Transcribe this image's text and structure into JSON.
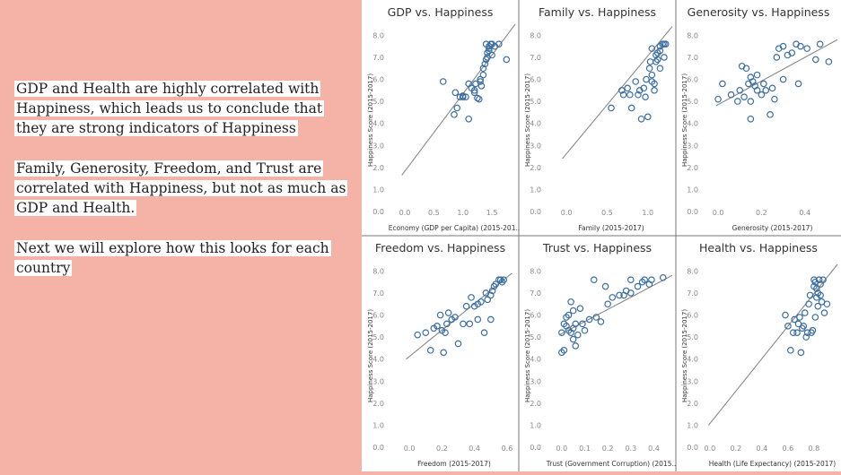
{
  "slide": {
    "paragraphs": [
      "GDP and Health are highly correlated with Happiness, which leads us to conclude that they are strong indicators of Happiness",
      "Family, Generosity, Freedom, and Trust are correlated with Happiness, but not as much as GDP and Health.",
      "Next we will explore how this looks for each country"
    ]
  },
  "chart_colors": {
    "point": "#3b6ea1",
    "trend": "#888888",
    "divider": "#777777"
  },
  "chart_data": [
    {
      "type": "scatter",
      "title": "GDP vs. Happiness",
      "xlabel": "Economy (GDP per Capita) (2015-201..",
      "ylabel": "Happiness Score (2015-2017)",
      "xlim": [
        -0.2,
        1.9
      ],
      "ylim": [
        0,
        8.3
      ],
      "xticks": [
        "0.0",
        "0.5",
        "1.0",
        "1.5"
      ],
      "xtick_values": [
        0,
        0.5,
        1.0,
        1.5
      ],
      "yticks": [
        "0.0",
        "1.0",
        "2.0",
        "3.0",
        "4.0",
        "5.0",
        "6.0",
        "7.0",
        "8.0"
      ],
      "ytick_values": [
        0,
        1,
        2,
        3,
        4,
        5,
        6,
        7,
        8
      ],
      "trend": [
        [
          -0.05,
          1.65
        ],
        [
          1.9,
          8.5
        ]
      ],
      "points": [
        [
          0.66,
          5.9
        ],
        [
          0.87,
          5.4
        ],
        [
          0.85,
          4.4
        ],
        [
          0.95,
          5.2
        ],
        [
          0.9,
          4.7
        ],
        [
          1.0,
          5.2
        ],
        [
          1.05,
          5.2
        ],
        [
          1.0,
          5.25
        ],
        [
          1.1,
          4.2
        ],
        [
          1.1,
          5.8
        ],
        [
          1.15,
          5.6
        ],
        [
          1.2,
          5.4
        ],
        [
          1.2,
          5.5
        ],
        [
          1.22,
          5.8
        ],
        [
          1.25,
          5.15
        ],
        [
          1.28,
          5.1
        ],
        [
          1.3,
          6.0
        ],
        [
          1.3,
          5.9
        ],
        [
          1.32,
          5.7
        ],
        [
          1.35,
          6.2
        ],
        [
          1.35,
          6.5
        ],
        [
          1.38,
          6.7
        ],
        [
          1.4,
          6.9
        ],
        [
          1.42,
          7.0
        ],
        [
          1.42,
          7.2
        ],
        [
          1.45,
          7.5
        ],
        [
          1.45,
          7.4
        ],
        [
          1.48,
          7.6
        ],
        [
          1.5,
          7.1
        ],
        [
          1.5,
          7.6
        ],
        [
          1.4,
          7.6
        ],
        [
          1.45,
          7.3
        ],
        [
          1.55,
          7.5
        ],
        [
          1.62,
          7.6
        ],
        [
          1.75,
          6.9
        ]
      ]
    },
    {
      "type": "scatter",
      "title": "Family vs. Happiness",
      "xlabel": "Family (2015-2017)",
      "ylabel": "Happiness Score (2015-2017)",
      "xlim": [
        -0.2,
        1.3
      ],
      "ylim": [
        0,
        8.3
      ],
      "xticks": [
        "0.0",
        "0.5",
        "1.0"
      ],
      "xtick_values": [
        0,
        0.5,
        1.0
      ],
      "yticks": [
        "0.0",
        "1.0",
        "2.0",
        "3.0",
        "4.0",
        "5.0",
        "6.0",
        "7.0",
        "8.0"
      ],
      "ytick_values": [
        0,
        1,
        2,
        3,
        4,
        5,
        6,
        7,
        8
      ],
      "trend": [
        [
          -0.05,
          2.4
        ],
        [
          1.3,
          8.4
        ]
      ],
      "points": [
        [
          0.55,
          4.7
        ],
        [
          0.68,
          5.5
        ],
        [
          0.7,
          5.3
        ],
        [
          0.75,
          5.6
        ],
        [
          0.78,
          5.3
        ],
        [
          0.8,
          4.7
        ],
        [
          0.85,
          5.9
        ],
        [
          0.88,
          5.3
        ],
        [
          0.9,
          5.5
        ],
        [
          0.92,
          4.2
        ],
        [
          0.95,
          5.6
        ],
        [
          0.97,
          5.2
        ],
        [
          0.98,
          6.0
        ],
        [
          1.0,
          4.3
        ],
        [
          1.02,
          6.5
        ],
        [
          1.03,
          6.8
        ],
        [
          1.05,
          7.4
        ],
        [
          1.05,
          5.9
        ],
        [
          1.08,
          5.5
        ],
        [
          1.1,
          7.1
        ],
        [
          1.1,
          6.8
        ],
        [
          1.12,
          6.9
        ],
        [
          1.12,
          7.2
        ],
        [
          1.15,
          7.5
        ],
        [
          1.15,
          7.3
        ],
        [
          1.15,
          6.5
        ],
        [
          1.18,
          7.6
        ],
        [
          1.2,
          7.6
        ],
        [
          1.2,
          7.0
        ],
        [
          1.22,
          7.6
        ],
        [
          1.05,
          6.2
        ],
        [
          1.08,
          5.8
        ]
      ]
    },
    {
      "type": "scatter",
      "title": "Generosity vs. Happiness",
      "xlabel": "Generosity (2015-2017)",
      "ylabel": "Happiness Score (2015-2017)",
      "xlim": [
        -0.05,
        0.55
      ],
      "ylim": [
        0,
        8.3
      ],
      "xticks": [
        "0.0",
        "0.2",
        "0.4"
      ],
      "xtick_values": [
        0,
        0.2,
        0.4
      ],
      "yticks": [
        "0.0",
        "1.0",
        "2.0",
        "3.0",
        "4.0",
        "5.0",
        "6.0",
        "7.0",
        "8.0"
      ],
      "ytick_values": [
        0,
        1,
        2,
        3,
        4,
        5,
        6,
        7,
        8
      ],
      "trend": [
        [
          -0.01,
          4.8
        ],
        [
          0.55,
          7.8
        ]
      ],
      "points": [
        [
          0.0,
          5.1
        ],
        [
          0.02,
          5.8
        ],
        [
          0.06,
          5.3
        ],
        [
          0.1,
          5.5
        ],
        [
          0.11,
          6.6
        ],
        [
          0.12,
          5.2
        ],
        [
          0.13,
          6.5
        ],
        [
          0.15,
          5.0
        ],
        [
          0.14,
          5.8
        ],
        [
          0.15,
          6.1
        ],
        [
          0.16,
          5.9
        ],
        [
          0.17,
          5.7
        ],
        [
          0.18,
          5.5
        ],
        [
          0.18,
          6.2
        ],
        [
          0.2,
          5.3
        ],
        [
          0.21,
          5.8
        ],
        [
          0.22,
          5.5
        ],
        [
          0.24,
          4.4
        ],
        [
          0.25,
          5.6
        ],
        [
          0.27,
          7.0
        ],
        [
          0.28,
          7.4
        ],
        [
          0.3,
          7.5
        ],
        [
          0.3,
          6.0
        ],
        [
          0.32,
          7.1
        ],
        [
          0.34,
          7.2
        ],
        [
          0.36,
          7.6
        ],
        [
          0.38,
          7.5
        ],
        [
          0.41,
          7.4
        ],
        [
          0.45,
          6.9
        ],
        [
          0.47,
          7.6
        ],
        [
          0.51,
          6.8
        ],
        [
          0.15,
          4.2
        ],
        [
          0.26,
          5.1
        ],
        [
          0.09,
          5.0
        ],
        [
          0.37,
          5.8
        ]
      ]
    },
    {
      "type": "scatter",
      "title": "Freedom vs. Happiness",
      "xlabel": "Freedom (2015-2017)",
      "ylabel": "Happiness Score (2015-2017)",
      "xlim": [
        -0.1,
        0.65
      ],
      "ylim": [
        0,
        8.3
      ],
      "xticks": [
        "0.0",
        "0.2",
        "0.4",
        "0.6"
      ],
      "xtick_values": [
        0,
        0.2,
        0.4,
        0.6
      ],
      "yticks": [
        "0.0",
        "1.0",
        "2.0",
        "3.0",
        "4.0",
        "5.0",
        "6.0",
        "7.0",
        "8.0"
      ],
      "ytick_values": [
        0,
        1,
        2,
        3,
        4,
        5,
        6,
        7,
        8
      ],
      "trend": [
        [
          -0.02,
          4.0
        ],
        [
          0.63,
          7.9
        ]
      ],
      "points": [
        [
          0.05,
          5.1
        ],
        [
          0.1,
          5.2
        ],
        [
          0.13,
          4.4
        ],
        [
          0.15,
          5.4
        ],
        [
          0.17,
          5.5
        ],
        [
          0.19,
          6.0
        ],
        [
          0.2,
          5.3
        ],
        [
          0.21,
          4.3
        ],
        [
          0.22,
          5.2
        ],
        [
          0.23,
          5.6
        ],
        [
          0.24,
          6.1
        ],
        [
          0.26,
          5.8
        ],
        [
          0.28,
          5.9
        ],
        [
          0.3,
          4.7
        ],
        [
          0.33,
          5.6
        ],
        [
          0.35,
          6.4
        ],
        [
          0.37,
          5.6
        ],
        [
          0.38,
          6.8
        ],
        [
          0.4,
          6.4
        ],
        [
          0.42,
          5.8
        ],
        [
          0.42,
          6.5
        ],
        [
          0.44,
          6.6
        ],
        [
          0.47,
          7.0
        ],
        [
          0.48,
          6.7
        ],
        [
          0.5,
          6.9
        ],
        [
          0.51,
          7.1
        ],
        [
          0.52,
          7.3
        ],
        [
          0.53,
          7.4
        ],
        [
          0.55,
          7.6
        ],
        [
          0.56,
          7.6
        ],
        [
          0.57,
          7.5
        ],
        [
          0.58,
          7.6
        ],
        [
          0.5,
          5.8
        ],
        [
          0.46,
          5.2
        ]
      ]
    },
    {
      "type": "scatter",
      "title": "Trust vs. Happiness",
      "xlabel": "Trust (Government Corruption) (2015..",
      "ylabel": "Happiness Score (2015-2017)",
      "xlim": [
        -0.05,
        0.48
      ],
      "ylim": [
        0,
        8.3
      ],
      "xticks": [
        "0.0",
        "0.1",
        "0.2",
        "0.3",
        "0.4"
      ],
      "xtick_values": [
        0,
        0.1,
        0.2,
        0.3,
        0.4
      ],
      "yticks": [
        "0.0",
        "1.0",
        "2.0",
        "3.0",
        "4.0",
        "5.0",
        "6.0",
        "7.0",
        "8.0"
      ],
      "ytick_values": [
        0,
        1,
        2,
        3,
        4,
        5,
        6,
        7,
        8
      ],
      "trend": [
        [
          -0.01,
          5.1
        ],
        [
          0.48,
          7.8
        ]
      ],
      "points": [
        [
          0.0,
          4.3
        ],
        [
          0.01,
          4.4
        ],
        [
          0.0,
          5.2
        ],
        [
          0.01,
          5.6
        ],
        [
          0.02,
          5.9
        ],
        [
          0.02,
          5.5
        ],
        [
          0.03,
          6.0
        ],
        [
          0.03,
          5.3
        ],
        [
          0.04,
          6.6
        ],
        [
          0.04,
          5.2
        ],
        [
          0.05,
          5.4
        ],
        [
          0.05,
          6.2
        ],
        [
          0.05,
          4.9
        ],
        [
          0.06,
          5.6
        ],
        [
          0.06,
          4.6
        ],
        [
          0.07,
          5.1
        ],
        [
          0.08,
          6.3
        ],
        [
          0.09,
          5.6
        ],
        [
          0.1,
          5.3
        ],
        [
          0.12,
          5.8
        ],
        [
          0.14,
          7.6
        ],
        [
          0.15,
          5.9
        ],
        [
          0.17,
          5.7
        ],
        [
          0.19,
          7.3
        ],
        [
          0.2,
          6.5
        ],
        [
          0.22,
          6.8
        ],
        [
          0.25,
          6.9
        ],
        [
          0.27,
          6.9
        ],
        [
          0.28,
          7.1
        ],
        [
          0.3,
          7.6
        ],
        [
          0.33,
          7.3
        ],
        [
          0.35,
          7.5
        ],
        [
          0.38,
          7.4
        ],
        [
          0.39,
          7.6
        ],
        [
          0.44,
          7.7
        ],
        [
          0.3,
          7.0
        ],
        [
          0.36,
          7.6
        ]
      ]
    },
    {
      "type": "scatter",
      "title": "Health vs. Happiness",
      "xlabel": "Health (Life Expectancy) (2015-2017)",
      "ylabel": "Happiness Score (2015-2017)",
      "xlim": [
        -0.02,
        0.98
      ],
      "ylim": [
        0,
        8.3
      ],
      "xticks": [
        "0.0",
        "0.2",
        "0.4",
        "0.6",
        "0.8"
      ],
      "xtick_values": [
        0,
        0.2,
        0.4,
        0.6,
        0.8
      ],
      "yticks": [
        "0.0",
        "1.0",
        "2.0",
        "3.0",
        "4.0",
        "5.0",
        "6.0",
        "7.0",
        "8.0"
      ],
      "ytick_values": [
        0,
        1,
        2,
        3,
        4,
        5,
        6,
        7,
        8
      ],
      "trend": [
        [
          -0.01,
          1.0
        ],
        [
          0.98,
          8.3
        ]
      ],
      "points": [
        [
          0.58,
          6.0
        ],
        [
          0.6,
          5.5
        ],
        [
          0.62,
          4.4
        ],
        [
          0.64,
          5.2
        ],
        [
          0.65,
          5.8
        ],
        [
          0.67,
          5.2
        ],
        [
          0.68,
          5.6
        ],
        [
          0.69,
          5.9
        ],
        [
          0.7,
          4.3
        ],
        [
          0.71,
          5.4
        ],
        [
          0.72,
          5.5
        ],
        [
          0.73,
          6.1
        ],
        [
          0.74,
          5.0
        ],
        [
          0.75,
          5.2
        ],
        [
          0.76,
          6.5
        ],
        [
          0.77,
          6.9
        ],
        [
          0.78,
          5.2
        ],
        [
          0.8,
          7.3
        ],
        [
          0.8,
          7.6
        ],
        [
          0.81,
          7.5
        ],
        [
          0.82,
          7.2
        ],
        [
          0.82,
          6.8
        ],
        [
          0.83,
          7.0
        ],
        [
          0.83,
          6.4
        ],
        [
          0.84,
          7.6
        ],
        [
          0.85,
          7.4
        ],
        [
          0.86,
          6.6
        ],
        [
          0.87,
          7.6
        ],
        [
          0.88,
          6.1
        ],
        [
          0.9,
          6.5
        ],
        [
          0.81,
          5.9
        ],
        [
          0.79,
          5.3
        ],
        [
          0.85,
          6.9
        ]
      ]
    }
  ]
}
